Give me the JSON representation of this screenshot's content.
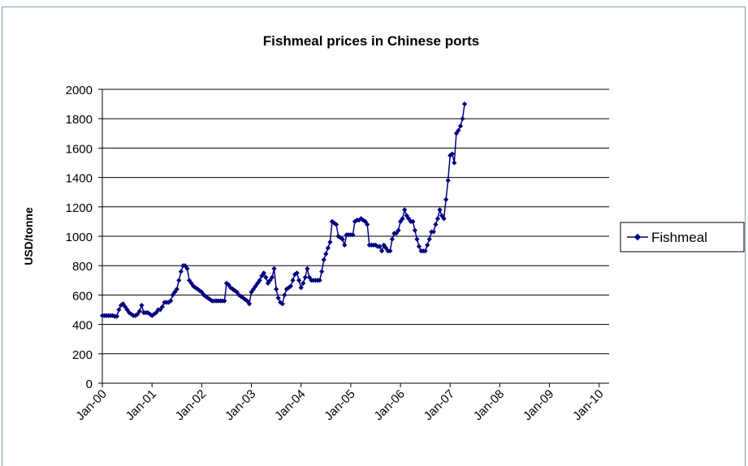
{
  "chart_data": {
    "type": "line",
    "title": "Fishmeal prices in Chinese ports",
    "xlabel": "",
    "ylabel": "USD/tonne",
    "ylim": [
      0,
      2000
    ],
    "y_ticks": [
      "0",
      "200",
      "400",
      "600",
      "800",
      "1000",
      "1200",
      "1400",
      "1600",
      "1800",
      "2000"
    ],
    "x_ticks": [
      "Jan-00",
      "Jan-01",
      "Jan-02",
      "Jan-03",
      "Jan-04",
      "Jan-05",
      "Jan-06",
      "Jan-07",
      "Jan-08",
      "Jan-09",
      "Jan-10"
    ],
    "grid": "horizontal",
    "legend_position": "right",
    "colors": {
      "series": "#000080",
      "grid": "#000000",
      "frame": "#7f9db9"
    },
    "series": [
      {
        "name": "Fishmeal",
        "x_start": "Jan-00",
        "interval": "half-month",
        "values": [
          460,
          460,
          460,
          460,
          460,
          460,
          455,
          455,
          500,
          530,
          540,
          520,
          500,
          480,
          470,
          460,
          460,
          470,
          490,
          530,
          480,
          480,
          480,
          470,
          460,
          470,
          480,
          500,
          500,
          520,
          550,
          550,
          550,
          560,
          600,
          620,
          640,
          700,
          760,
          800,
          800,
          780,
          700,
          680,
          660,
          650,
          640,
          630,
          620,
          600,
          590,
          580,
          570,
          560,
          560,
          560,
          560,
          560,
          560,
          560,
          680,
          670,
          650,
          640,
          630,
          620,
          600,
          590,
          580,
          570,
          560,
          540,
          620,
          640,
          660,
          680,
          700,
          730,
          750,
          720,
          680,
          700,
          720,
          780,
          640,
          580,
          550,
          540,
          600,
          640,
          650,
          660,
          700,
          740,
          750,
          700,
          650,
          680,
          720,
          780,
          720,
          700,
          700,
          700,
          700,
          700,
          760,
          840,
          880,
          920,
          960,
          1100,
          1090,
          1080,
          1000,
          990,
          980,
          940,
          1010,
          1010,
          1010,
          1010,
          1100,
          1110,
          1110,
          1120,
          1110,
          1100,
          1080,
          940,
          940,
          940,
          940,
          930,
          930,
          900,
          940,
          920,
          900,
          900,
          980,
          1020,
          1020,
          1040,
          1100,
          1120,
          1180,
          1140,
          1120,
          1100,
          1100,
          1040,
          980,
          930,
          900,
          900,
          900,
          940,
          980,
          1030,
          1030,
          1080,
          1120,
          1180,
          1140,
          1120,
          1250,
          1380,
          1550,
          1560,
          1500,
          1700,
          1720,
          1750,
          1800,
          1900
        ]
      }
    ]
  }
}
